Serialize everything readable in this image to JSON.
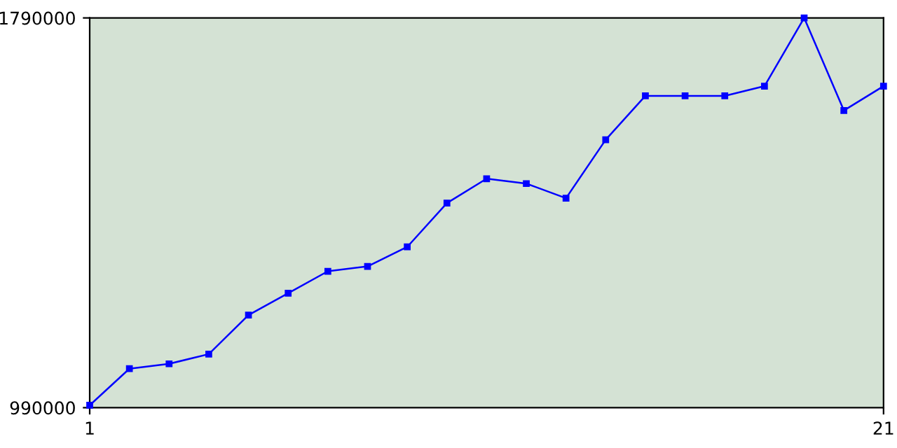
{
  "chart_data": {
    "type": "line",
    "x": [
      1,
      2,
      3,
      4,
      5,
      6,
      7,
      8,
      9,
      10,
      11,
      12,
      13,
      14,
      15,
      16,
      17,
      18,
      19,
      20,
      21
    ],
    "series": [
      {
        "color": "#0000ff",
        "values": [
          995000,
          1070000,
          1080000,
          1100000,
          1180000,
          1225000,
          1270000,
          1280000,
          1320000,
          1410000,
          1460000,
          1450000,
          1420000,
          1540000,
          1630000,
          1630000,
          1630000,
          1650000,
          1790000,
          1600000,
          1650000
        ]
      }
    ],
    "xlim": [
      1,
      21
    ],
    "xticks": [
      1,
      21
    ],
    "ylim": [
      990000,
      1790000
    ],
    "yticks": [
      990000,
      1790000
    ],
    "marker": "square",
    "line_style": "solid",
    "grid": false,
    "legend": false
  }
}
